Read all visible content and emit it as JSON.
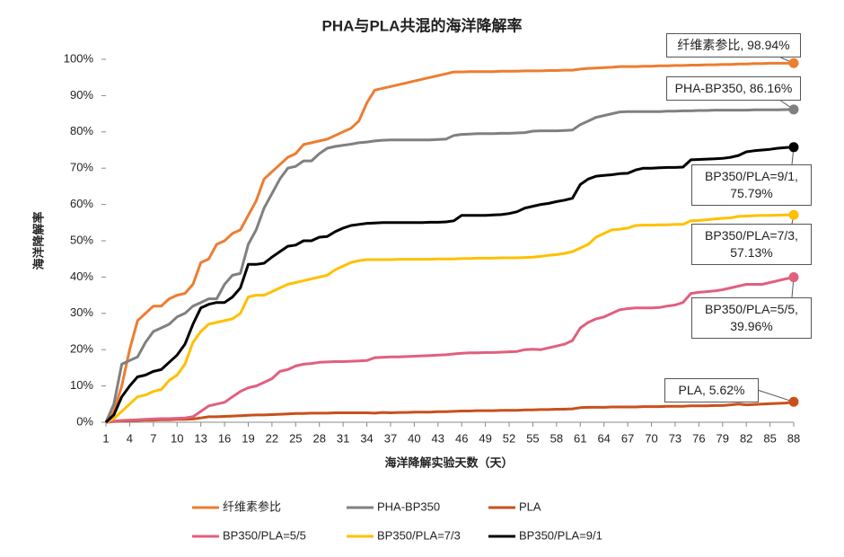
{
  "chart_data": {
    "type": "line",
    "title": "PHA与PLA共混的海洋降解率",
    "x_label": "海洋降解实验天数（天）",
    "y_label": "海洋降解率",
    "x": [
      1,
      2,
      3,
      4,
      5,
      6,
      7,
      8,
      9,
      10,
      11,
      12,
      13,
      14,
      15,
      16,
      17,
      18,
      19,
      20,
      21,
      22,
      23,
      24,
      25,
      26,
      27,
      28,
      29,
      30,
      31,
      32,
      33,
      34,
      35,
      36,
      37,
      38,
      39,
      40,
      41,
      42,
      43,
      44,
      45,
      46,
      47,
      48,
      49,
      50,
      51,
      52,
      53,
      54,
      55,
      56,
      57,
      58,
      59,
      60,
      61,
      62,
      63,
      64,
      65,
      66,
      67,
      68,
      69,
      70,
      71,
      72,
      73,
      74,
      75,
      76,
      77,
      78,
      79,
      80,
      81,
      82,
      83,
      84,
      85,
      86,
      87,
      88
    ],
    "xlim": [
      1,
      88
    ],
    "xticks": [
      1,
      4,
      7,
      10,
      13,
      16,
      19,
      22,
      25,
      28,
      31,
      34,
      37,
      40,
      43,
      46,
      49,
      52,
      55,
      58,
      61,
      64,
      67,
      70,
      73,
      76,
      79,
      82,
      85,
      88
    ],
    "ylim": [
      0,
      100
    ],
    "yticks": [
      {
        "value": 0,
        "label": "0%"
      },
      {
        "value": 10,
        "label": "10%"
      },
      {
        "value": 20,
        "label": "20%"
      },
      {
        "value": 30,
        "label": "30%"
      },
      {
        "value": 40,
        "label": "40%"
      },
      {
        "value": 50,
        "label": "50%"
      },
      {
        "value": 60,
        "label": "60%"
      },
      {
        "value": 70,
        "label": "70%"
      },
      {
        "value": 80,
        "label": "80%"
      },
      {
        "value": 90,
        "label": "90%"
      },
      {
        "value": 100,
        "label": "100%"
      }
    ],
    "grid": false,
    "legend": "bottom",
    "series": [
      {
        "name": "纤维素参比",
        "color": "#ED7D31",
        "values": [
          0,
          3,
          10,
          20,
          28,
          30,
          32,
          32,
          34,
          35,
          35.5,
          38,
          44,
          45,
          49,
          50,
          52,
          53,
          57,
          61,
          67,
          69,
          71,
          73,
          74,
          76.5,
          77,
          77.5,
          78,
          79,
          80,
          81,
          83,
          88,
          91.5,
          92,
          92.5,
          93,
          93.5,
          94,
          94.5,
          95,
          95.5,
          96,
          96.5,
          96.5,
          96.6,
          96.6,
          96.6,
          96.6,
          96.7,
          96.7,
          96.7,
          96.8,
          96.8,
          96.8,
          96.9,
          96.9,
          97,
          97,
          97.3,
          97.5,
          97.6,
          97.7,
          97.8,
          98,
          98,
          98,
          98.1,
          98.1,
          98.2,
          98.2,
          98.3,
          98.3,
          98.4,
          98.4,
          98.5,
          98.5,
          98.6,
          98.6,
          98.7,
          98.7,
          98.8,
          98.8,
          98.9,
          98.9,
          98.9,
          98.94
        ],
        "value_labels": [
          null,
          null,
          null,
          null,
          null,
          null,
          null,
          null,
          null,
          null,
          null,
          null,
          null,
          null,
          null,
          null,
          null,
          null,
          null,
          null,
          null,
          null,
          null,
          null,
          null,
          null,
          null,
          null,
          null,
          null,
          null,
          null,
          null,
          null,
          null,
          null,
          null,
          null,
          null,
          null,
          null,
          null,
          null,
          null,
          null,
          null,
          null,
          null,
          null,
          null,
          null,
          null,
          null,
          null,
          null,
          null,
          null,
          null,
          null,
          null,
          null,
          null,
          null,
          null,
          null,
          null,
          null,
          null,
          null,
          null,
          null,
          null,
          null,
          null,
          null,
          null,
          null,
          null,
          null,
          null,
          null,
          null,
          null,
          null,
          null,
          null,
          null,
          "纤维素参比, 98.94%"
        ]
      },
      {
        "name": "PHA-BP350",
        "color": "#808080",
        "values": [
          0,
          5,
          16,
          17,
          18,
          22,
          25,
          26,
          27,
          29,
          30,
          32,
          33,
          34,
          34,
          38,
          40.5,
          41,
          49,
          53,
          59,
          63,
          67,
          70,
          70.5,
          72,
          72,
          74,
          75.5,
          76,
          76.3,
          76.6,
          77,
          77.2,
          77.5,
          77.7,
          77.8,
          77.8,
          77.8,
          77.8,
          77.8,
          77.8,
          77.9,
          78,
          79,
          79.3,
          79.4,
          79.5,
          79.5,
          79.5,
          79.6,
          79.6,
          79.7,
          79.8,
          80.2,
          80.3,
          80.3,
          80.3,
          80.4,
          80.5,
          82,
          83,
          84,
          84.5,
          85,
          85.5,
          85.6,
          85.6,
          85.6,
          85.6,
          85.6,
          85.7,
          85.7,
          85.8,
          85.8,
          85.9,
          85.9,
          86,
          86,
          86,
          86,
          86,
          86.1,
          86.1,
          86.1,
          86.1,
          86.15,
          86.16
        ],
        "value_labels": [
          null,
          null,
          null,
          null,
          null,
          null,
          null,
          null,
          null,
          null,
          null,
          null,
          null,
          null,
          null,
          null,
          null,
          null,
          null,
          null,
          null,
          null,
          null,
          null,
          null,
          null,
          null,
          null,
          null,
          null,
          null,
          null,
          null,
          null,
          null,
          null,
          null,
          null,
          null,
          null,
          null,
          null,
          null,
          null,
          null,
          null,
          null,
          null,
          null,
          null,
          null,
          null,
          null,
          null,
          null,
          null,
          null,
          null,
          null,
          null,
          null,
          null,
          null,
          null,
          null,
          null,
          null,
          null,
          null,
          null,
          null,
          null,
          null,
          null,
          null,
          null,
          null,
          null,
          null,
          null,
          null,
          null,
          null,
          null,
          null,
          null,
          null,
          "PHA-BP350, 86.16%"
        ]
      },
      {
        "name": "PLA",
        "color": "#C9501C",
        "values": [
          0,
          0.2,
          0.3,
          0.4,
          0.5,
          0.6,
          0.6,
          0.7,
          0.7,
          0.8,
          0.8,
          0.9,
          1.2,
          1.5,
          1.5,
          1.6,
          1.7,
          1.8,
          1.9,
          2,
          2,
          2.1,
          2.2,
          2.3,
          2.4,
          2.4,
          2.5,
          2.5,
          2.5,
          2.6,
          2.6,
          2.6,
          2.6,
          2.6,
          2.5,
          2.7,
          2.6,
          2.7,
          2.7,
          2.8,
          2.8,
          2.8,
          2.9,
          2.9,
          3,
          3.1,
          3.1,
          3.2,
          3.2,
          3.2,
          3.3,
          3.3,
          3.3,
          3.4,
          3.4,
          3.5,
          3.5,
          3.6,
          3.6,
          3.7,
          4,
          4.1,
          4.1,
          4.1,
          4.2,
          4.2,
          4.2,
          4.2,
          4.3,
          4.3,
          4.3,
          4.4,
          4.4,
          4.4,
          4.5,
          4.5,
          4.5,
          4.6,
          4.6,
          4.8,
          5,
          4.8,
          4.9,
          5,
          5.1,
          5.2,
          5.3,
          5.62
        ],
        "value_labels": [
          null,
          null,
          null,
          null,
          null,
          null,
          null,
          null,
          null,
          null,
          null,
          null,
          null,
          null,
          null,
          null,
          null,
          null,
          null,
          null,
          null,
          null,
          null,
          null,
          null,
          null,
          null,
          null,
          null,
          null,
          null,
          null,
          null,
          null,
          null,
          null,
          null,
          null,
          null,
          null,
          null,
          null,
          null,
          null,
          null,
          null,
          null,
          null,
          null,
          null,
          null,
          null,
          null,
          null,
          null,
          null,
          null,
          null,
          null,
          null,
          null,
          null,
          null,
          null,
          null,
          null,
          null,
          null,
          null,
          null,
          null,
          null,
          null,
          null,
          null,
          null,
          null,
          null,
          null,
          null,
          null,
          null,
          null,
          null,
          null,
          null,
          null,
          "PLA, 5.62%"
        ]
      },
      {
        "name": "BP350/PLA=5/5",
        "color": "#E0607E",
        "values": [
          0,
          0.3,
          0.5,
          0.6,
          0.7,
          0.8,
          0.9,
          1,
          1,
          1.1,
          1.2,
          1.5,
          3,
          4.5,
          5,
          5.5,
          7,
          8.5,
          9.5,
          10,
          11,
          12,
          14,
          14.5,
          15.5,
          16,
          16.2,
          16.5,
          16.6,
          16.7,
          16.7,
          16.8,
          16.9,
          17,
          17.8,
          17.9,
          18,
          18,
          18.1,
          18.2,
          18.3,
          18.4,
          18.5,
          18.6,
          18.8,
          19,
          19.1,
          19.1,
          19.2,
          19.2,
          19.3,
          19.4,
          19.5,
          20,
          20.1,
          20,
          20.5,
          21,
          21.5,
          22.5,
          26,
          27.5,
          28.5,
          29,
          30,
          31,
          31.3,
          31.5,
          31.5,
          31.5,
          31.6,
          32,
          32.3,
          33,
          35.5,
          35.8,
          36,
          36.2,
          36.5,
          37,
          37.5,
          38,
          38,
          38,
          38.5,
          39,
          39.5,
          39.96
        ],
        "value_labels": [
          null,
          null,
          null,
          null,
          null,
          null,
          null,
          null,
          null,
          null,
          null,
          null,
          null,
          null,
          null,
          null,
          null,
          null,
          null,
          null,
          null,
          null,
          null,
          null,
          null,
          null,
          null,
          null,
          null,
          null,
          null,
          null,
          null,
          null,
          null,
          null,
          null,
          null,
          null,
          null,
          null,
          null,
          null,
          null,
          null,
          null,
          null,
          null,
          null,
          null,
          null,
          null,
          null,
          null,
          null,
          null,
          null,
          null,
          null,
          null,
          null,
          null,
          null,
          null,
          null,
          null,
          null,
          null,
          null,
          null,
          null,
          null,
          null,
          null,
          null,
          null,
          null,
          null,
          null,
          null,
          null,
          null,
          null,
          null,
          null,
          null,
          null,
          "BP350/PLA=5/5, 39.96%"
        ]
      },
      {
        "name": "BP350/PLA=7/3",
        "color": "#FFC000",
        "values": [
          0,
          1,
          3,
          5,
          7,
          7.5,
          8.5,
          9,
          11.5,
          13,
          16,
          22,
          25,
          27,
          27.5,
          28,
          28.5,
          30,
          34.5,
          35,
          35,
          36,
          37,
          38,
          38.5,
          39,
          39.5,
          40,
          40.5,
          42,
          43,
          44,
          44.5,
          44.8,
          44.8,
          44.8,
          44.8,
          44.9,
          44.9,
          44.9,
          44.9,
          44.9,
          45,
          45,
          45,
          45.1,
          45.1,
          45.2,
          45.2,
          45.2,
          45.3,
          45.3,
          45.3,
          45.4,
          45.5,
          45.7,
          46,
          46.2,
          46.5,
          47,
          48,
          49,
          51,
          52,
          53,
          53.2,
          53.5,
          54.2,
          54.3,
          54.3,
          54.4,
          54.4,
          54.5,
          54.5,
          55.5,
          55.6,
          55.8,
          56,
          56.2,
          56.3,
          56.7,
          56.8,
          56.9,
          57,
          57,
          57.05,
          57.1,
          57.13
        ],
        "value_labels": [
          null,
          null,
          null,
          null,
          null,
          null,
          null,
          null,
          null,
          null,
          null,
          null,
          null,
          null,
          null,
          null,
          null,
          null,
          null,
          null,
          null,
          null,
          null,
          null,
          null,
          null,
          null,
          null,
          null,
          null,
          null,
          null,
          null,
          null,
          null,
          null,
          null,
          null,
          null,
          null,
          null,
          null,
          null,
          null,
          null,
          null,
          null,
          null,
          null,
          null,
          null,
          null,
          null,
          null,
          null,
          null,
          null,
          null,
          null,
          null,
          null,
          null,
          null,
          null,
          null,
          null,
          null,
          null,
          null,
          null,
          null,
          null,
          null,
          null,
          null,
          null,
          null,
          null,
          null,
          null,
          null,
          null,
          null,
          null,
          null,
          null,
          null,
          "BP350/PLA=7/3, 57.13%"
        ]
      },
      {
        "name": "BP350/PLA=9/1",
        "color": "#000000",
        "values": [
          0,
          2,
          7,
          10,
          12.5,
          13,
          14,
          14.5,
          16.5,
          18.5,
          21.5,
          27,
          31.5,
          32.5,
          33,
          33,
          34.5,
          37,
          43.5,
          43.5,
          43.8,
          45.5,
          47,
          48.5,
          48.8,
          50,
          50,
          51,
          51.2,
          52.5,
          53.5,
          54.2,
          54.5,
          54.8,
          54.9,
          55,
          55,
          55,
          55,
          55,
          55,
          55.1,
          55.1,
          55.2,
          55.5,
          57,
          57,
          57,
          57,
          57.1,
          57.2,
          57.5,
          58,
          59,
          59.5,
          60,
          60.3,
          60.8,
          61.2,
          61.7,
          65.5,
          67,
          67.8,
          68,
          68.2,
          68.5,
          68.6,
          69.5,
          70,
          70,
          70.1,
          70.2,
          70.2,
          70.3,
          72.3,
          72.4,
          72.5,
          72.6,
          72.7,
          73,
          73.5,
          74.5,
          74.8,
          75,
          75.2,
          75.5,
          75.7,
          75.79
        ],
        "value_labels": [
          null,
          null,
          null,
          null,
          null,
          null,
          null,
          null,
          null,
          null,
          null,
          null,
          null,
          null,
          null,
          null,
          null,
          null,
          null,
          null,
          null,
          null,
          null,
          null,
          null,
          null,
          null,
          null,
          null,
          null,
          null,
          null,
          null,
          null,
          null,
          null,
          null,
          null,
          null,
          null,
          null,
          null,
          null,
          null,
          null,
          null,
          null,
          null,
          null,
          null,
          null,
          null,
          null,
          null,
          null,
          null,
          null,
          null,
          null,
          null,
          null,
          null,
          null,
          null,
          null,
          null,
          null,
          null,
          null,
          null,
          null,
          null,
          null,
          null,
          null,
          null,
          null,
          null,
          null,
          null,
          null,
          null,
          null,
          null,
          null,
          null,
          null,
          "BP350/PLA=9/1, 75.79%"
        ]
      }
    ]
  }
}
